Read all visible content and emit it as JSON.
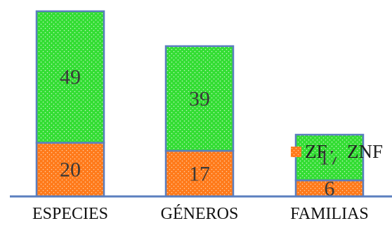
{
  "chart_data": {
    "type": "bar",
    "stacked": true,
    "categories": [
      "ESPECIES",
      "GÉNEROS",
      "FAMILIAS"
    ],
    "series": [
      {
        "name": "ZF",
        "values": [
          20,
          17,
          6
        ],
        "color": "#ff7a1a"
      },
      {
        "name": "ZNF",
        "values": [
          49,
          39,
          17
        ],
        "color": "#33dd33"
      }
    ],
    "ylim": [
      0,
      69
    ],
    "grid": false,
    "legend_position": "right",
    "outline_color": "#5b7fbf",
    "baseline_color": "#5b7fbf"
  }
}
